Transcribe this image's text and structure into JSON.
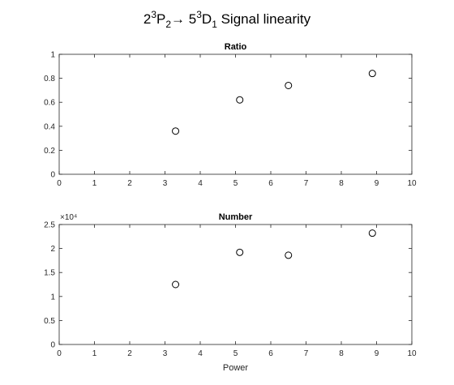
{
  "figure": {
    "title": {
      "p1": "2",
      "p2": "3",
      "p3": "P",
      "p4": "2",
      "p5": "→ 5",
      "p6": "3",
      "p7": "D",
      "p8": "1",
      "p9": " Signal linearity"
    }
  },
  "chart_data": [
    {
      "type": "scatter",
      "title": "Ratio",
      "xlabel": "",
      "ylabel": "",
      "xlim": [
        0,
        10
      ],
      "ylim": [
        0,
        1
      ],
      "grid": false,
      "xticks": [
        0,
        1,
        2,
        3,
        4,
        5,
        6,
        7,
        8,
        9,
        10
      ],
      "xtick_labels": [
        "0",
        "1",
        "2",
        "3",
        "4",
        "5",
        "6",
        "7",
        "8",
        "9",
        "10"
      ],
      "yticks": [
        0,
        0.2,
        0.4,
        0.6,
        0.8,
        1
      ],
      "ytick_labels": [
        "0",
        "0.2",
        "0.4",
        "0.6",
        "0.8",
        "1"
      ],
      "exponent_label": "",
      "marker": "circle",
      "marker_color": "#000000",
      "x": [
        3.3,
        5.12,
        6.5,
        8.88
      ],
      "y": [
        0.36,
        0.62,
        0.74,
        0.84
      ]
    },
    {
      "type": "scatter",
      "title": "Number",
      "xlabel": "Power",
      "ylabel": "",
      "xlim": [
        0,
        10
      ],
      "ylim": [
        0,
        25000
      ],
      "grid": false,
      "xticks": [
        0,
        1,
        2,
        3,
        4,
        5,
        6,
        7,
        8,
        9,
        10
      ],
      "xtick_labels": [
        "0",
        "1",
        "2",
        "3",
        "4",
        "5",
        "6",
        "7",
        "8",
        "9",
        "10"
      ],
      "yticks": [
        0,
        5000,
        10000,
        15000,
        20000,
        25000
      ],
      "ytick_labels": [
        "0",
        "0.5",
        "1",
        "1.5",
        "2",
        "2.5"
      ],
      "exponent_label": "×10⁴",
      "marker": "circle",
      "marker_color": "#000000",
      "x": [
        3.3,
        5.12,
        6.5,
        8.88
      ],
      "y": [
        12500,
        19200,
        18600,
        23200
      ]
    }
  ]
}
